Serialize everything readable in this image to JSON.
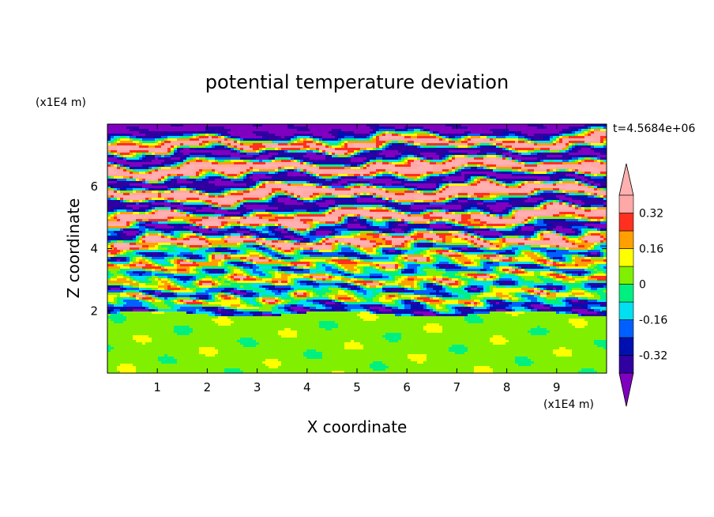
{
  "chart_data": {
    "type": "heatmap",
    "title": "potential temperature deviation",
    "xlabel": "X coordinate",
    "ylabel": "Z coordinate",
    "x_unit": "(x1E4 m)",
    "y_unit": "(x1E4 m)",
    "time_label": "t=4.5684e+06",
    "xlim": [
      0,
      10
    ],
    "ylim": [
      0,
      8
    ],
    "x_ticks": [
      1,
      2,
      3,
      4,
      5,
      6,
      7,
      8,
      9
    ],
    "y_ticks": [
      2,
      4,
      6
    ],
    "colorbar": {
      "levels": [
        -0.4,
        -0.32,
        -0.24,
        -0.16,
        -0.08,
        0,
        0.08,
        0.16,
        0.24,
        0.32,
        0.4
      ],
      "labels": [
        "0.32",
        "0.16",
        "0",
        "-0.16",
        "-0.32"
      ],
      "label_values": [
        0.32,
        0.16,
        0,
        -0.16,
        -0.32
      ],
      "colors": [
        "#8000c0",
        "#3000a0",
        "#0010b0",
        "#0060ff",
        "#00e0f0",
        "#00f080",
        "#80f000",
        "#ffff00",
        "#ffa000",
        "#ff3020",
        "#ffa8a8",
        "#ffb0b0"
      ],
      "extend": "both"
    },
    "pattern": {
      "mixed_layer_top": 1.9,
      "layered_region": [
        1.9,
        8
      ],
      "description_bands": [
        {
          "z": 7.6,
          "value": -0.45
        },
        {
          "z": 7.3,
          "value": 0.45
        },
        {
          "z": 6.9,
          "value": -0.45
        },
        {
          "z": 6.5,
          "value": 0.45
        },
        {
          "z": 6.1,
          "value": -0.45
        },
        {
          "z": 5.7,
          "value": 0.45
        },
        {
          "z": 5.3,
          "value": -0.45
        },
        {
          "z": 4.9,
          "value": 0.45
        },
        {
          "z": 4.5,
          "value": -0.4
        },
        {
          "z": 4.1,
          "value": 0.45
        },
        {
          "z": 3.8,
          "value": -0.35
        },
        {
          "z": 3.5,
          "value": 0.35
        },
        {
          "z": 3.2,
          "value": -0.3
        },
        {
          "z": 2.9,
          "value": 0.3
        },
        {
          "z": 2.6,
          "value": -0.35
        },
        {
          "z": 2.3,
          "value": 0.3
        },
        {
          "z": 2.05,
          "value": -0.3
        }
      ]
    }
  }
}
